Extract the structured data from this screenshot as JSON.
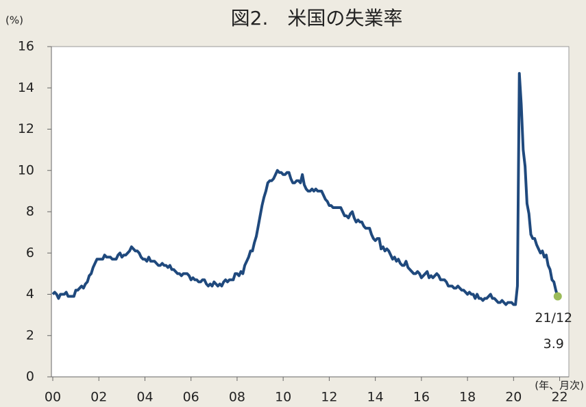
{
  "chart_data": {
    "type": "line",
    "title": "図2.　米国の失業率",
    "y_unit": "(%)",
    "x_unit": "(年、月次)",
    "annotation": "21/12",
    "color": "#1f497d",
    "end_marker_color": "#9bbb59",
    "xlim": [
      2000,
      2022.4
    ],
    "ylim": [
      0,
      16
    ],
    "yticks": [
      0,
      2,
      4,
      6,
      8,
      10,
      12,
      14,
      16
    ],
    "xticks": [
      {
        "value": 2000,
        "label": "00"
      },
      {
        "value": 2002,
        "label": "02"
      },
      {
        "value": 2004,
        "label": "04"
      },
      {
        "value": 2006,
        "label": "06"
      },
      {
        "value": 2008,
        "label": "08"
      },
      {
        "value": 2010,
        "label": "10"
      },
      {
        "value": 2012,
        "label": "12"
      },
      {
        "value": 2014,
        "label": "14"
      },
      {
        "value": 2016,
        "label": "16"
      },
      {
        "value": 2018,
        "label": "18"
      },
      {
        "value": 2020,
        "label": "20"
      },
      {
        "value": 2022,
        "label": "22"
      }
    ],
    "x": [
      2000.0,
      2000.083,
      2000.167,
      2000.25,
      2000.333,
      2000.417,
      2000.5,
      2000.583,
      2000.667,
      2000.75,
      2000.833,
      2000.917,
      2001.0,
      2001.083,
      2001.167,
      2001.25,
      2001.333,
      2001.417,
      2001.5,
      2001.583,
      2001.667,
      2001.75,
      2001.833,
      2001.917,
      2002.0,
      2002.083,
      2002.167,
      2002.25,
      2002.333,
      2002.417,
      2002.5,
      2002.583,
      2002.667,
      2002.75,
      2002.833,
      2002.917,
      2003.0,
      2003.083,
      2003.167,
      2003.25,
      2003.333,
      2003.417,
      2003.5,
      2003.583,
      2003.667,
      2003.75,
      2003.833,
      2003.917,
      2004.0,
      2004.083,
      2004.167,
      2004.25,
      2004.333,
      2004.417,
      2004.5,
      2004.583,
      2004.667,
      2004.75,
      2004.833,
      2004.917,
      2005.0,
      2005.083,
      2005.167,
      2005.25,
      2005.333,
      2005.417,
      2005.5,
      2005.583,
      2005.667,
      2005.75,
      2005.833,
      2005.917,
      2006.0,
      2006.083,
      2006.167,
      2006.25,
      2006.333,
      2006.417,
      2006.5,
      2006.583,
      2006.667,
      2006.75,
      2006.833,
      2006.917,
      2007.0,
      2007.083,
      2007.167,
      2007.25,
      2007.333,
      2007.417,
      2007.5,
      2007.583,
      2007.667,
      2007.75,
      2007.833,
      2007.917,
      2008.0,
      2008.083,
      2008.167,
      2008.25,
      2008.333,
      2008.417,
      2008.5,
      2008.583,
      2008.667,
      2008.75,
      2008.833,
      2008.917,
      2009.0,
      2009.083,
      2009.167,
      2009.25,
      2009.333,
      2009.417,
      2009.5,
      2009.583,
      2009.667,
      2009.75,
      2009.833,
      2009.917,
      2010.0,
      2010.083,
      2010.167,
      2010.25,
      2010.333,
      2010.417,
      2010.5,
      2010.583,
      2010.667,
      2010.75,
      2010.833,
      2010.917,
      2011.0,
      2011.083,
      2011.167,
      2011.25,
      2011.333,
      2011.417,
      2011.5,
      2011.583,
      2011.667,
      2011.75,
      2011.833,
      2011.917,
      2012.0,
      2012.083,
      2012.167,
      2012.25,
      2012.333,
      2012.417,
      2012.5,
      2012.583,
      2012.667,
      2012.75,
      2012.833,
      2012.917,
      2013.0,
      2013.083,
      2013.167,
      2013.25,
      2013.333,
      2013.417,
      2013.5,
      2013.583,
      2013.667,
      2013.75,
      2013.833,
      2013.917,
      2014.0,
      2014.083,
      2014.167,
      2014.25,
      2014.333,
      2014.417,
      2014.5,
      2014.583,
      2014.667,
      2014.75,
      2014.833,
      2014.917,
      2015.0,
      2015.083,
      2015.167,
      2015.25,
      2015.333,
      2015.417,
      2015.5,
      2015.583,
      2015.667,
      2015.75,
      2015.833,
      2015.917,
      2016.0,
      2016.083,
      2016.167,
      2016.25,
      2016.333,
      2016.417,
      2016.5,
      2016.583,
      2016.667,
      2016.75,
      2016.833,
      2016.917,
      2017.0,
      2017.083,
      2017.167,
      2017.25,
      2017.333,
      2017.417,
      2017.5,
      2017.583,
      2017.667,
      2017.75,
      2017.833,
      2017.917,
      2018.0,
      2018.083,
      2018.167,
      2018.25,
      2018.333,
      2018.417,
      2018.5,
      2018.583,
      2018.667,
      2018.75,
      2018.833,
      2018.917,
      2019.0,
      2019.083,
      2019.167,
      2019.25,
      2019.333,
      2019.417,
      2019.5,
      2019.583,
      2019.667,
      2019.75,
      2019.833,
      2019.917,
      2020.0,
      2020.083,
      2020.167,
      2020.25,
      2020.333,
      2020.417,
      2020.5,
      2020.583,
      2020.667,
      2020.75,
      2020.833,
      2020.917,
      2021.0,
      2021.083,
      2021.167,
      2021.25,
      2021.333,
      2021.417,
      2021.5,
      2021.583,
      2021.667,
      2021.75,
      2021.833,
      2021.917
    ],
    "values": [
      4.0,
      4.1,
      4.0,
      3.8,
      4.0,
      4.0,
      4.0,
      4.1,
      3.9,
      3.9,
      3.9,
      3.9,
      4.2,
      4.2,
      4.3,
      4.4,
      4.3,
      4.5,
      4.6,
      4.9,
      5.0,
      5.3,
      5.5,
      5.7,
      5.7,
      5.7,
      5.7,
      5.9,
      5.8,
      5.8,
      5.8,
      5.7,
      5.7,
      5.7,
      5.9,
      6.0,
      5.8,
      5.9,
      5.9,
      6.0,
      6.1,
      6.3,
      6.2,
      6.1,
      6.1,
      6.0,
      5.8,
      5.7,
      5.7,
      5.6,
      5.8,
      5.6,
      5.6,
      5.6,
      5.5,
      5.4,
      5.4,
      5.5,
      5.4,
      5.4,
      5.3,
      5.4,
      5.2,
      5.2,
      5.1,
      5.0,
      5.0,
      4.9,
      5.0,
      5.0,
      5.0,
      4.9,
      4.7,
      4.8,
      4.7,
      4.7,
      4.6,
      4.6,
      4.7,
      4.7,
      4.5,
      4.4,
      4.5,
      4.4,
      4.6,
      4.5,
      4.4,
      4.5,
      4.4,
      4.6,
      4.7,
      4.6,
      4.7,
      4.7,
      4.7,
      5.0,
      5.0,
      4.9,
      5.1,
      5.0,
      5.4,
      5.6,
      5.8,
      6.1,
      6.1,
      6.5,
      6.8,
      7.3,
      7.8,
      8.3,
      8.7,
      9.0,
      9.4,
      9.5,
      9.5,
      9.6,
      9.8,
      10.0,
      9.9,
      9.9,
      9.8,
      9.8,
      9.9,
      9.9,
      9.6,
      9.4,
      9.4,
      9.5,
      9.5,
      9.4,
      9.8,
      9.3,
      9.1,
      9.0,
      9.0,
      9.1,
      9.0,
      9.1,
      9.0,
      9.0,
      9.0,
      8.8,
      8.6,
      8.5,
      8.3,
      8.3,
      8.2,
      8.2,
      8.2,
      8.2,
      8.2,
      8.0,
      7.8,
      7.8,
      7.7,
      7.9,
      8.0,
      7.7,
      7.5,
      7.6,
      7.5,
      7.5,
      7.3,
      7.2,
      7.2,
      7.2,
      6.9,
      6.7,
      6.6,
      6.7,
      6.7,
      6.2,
      6.3,
      6.1,
      6.2,
      6.1,
      5.9,
      5.7,
      5.8,
      5.6,
      5.7,
      5.5,
      5.4,
      5.4,
      5.6,
      5.3,
      5.2,
      5.1,
      5.0,
      5.0,
      5.1,
      5.0,
      4.8,
      4.9,
      5.0,
      5.1,
      4.8,
      4.9,
      4.8,
      4.9,
      5.0,
      4.9,
      4.7,
      4.7,
      4.7,
      4.6,
      4.4,
      4.4,
      4.4,
      4.3,
      4.3,
      4.4,
      4.3,
      4.2,
      4.2,
      4.1,
      4.0,
      4.1,
      4.0,
      4.0,
      3.8,
      4.0,
      3.8,
      3.8,
      3.7,
      3.8,
      3.8,
      3.9,
      4.0,
      3.8,
      3.8,
      3.7,
      3.6,
      3.6,
      3.7,
      3.6,
      3.5,
      3.6,
      3.6,
      3.6,
      3.5,
      3.5,
      4.4,
      14.7,
      13.2,
      11.0,
      10.2,
      8.4,
      7.9,
      6.9,
      6.7,
      6.7,
      6.4,
      6.2,
      6.0,
      6.1,
      5.8,
      5.9,
      5.4,
      5.2,
      4.7,
      4.6,
      4.2,
      3.9
    ]
  }
}
